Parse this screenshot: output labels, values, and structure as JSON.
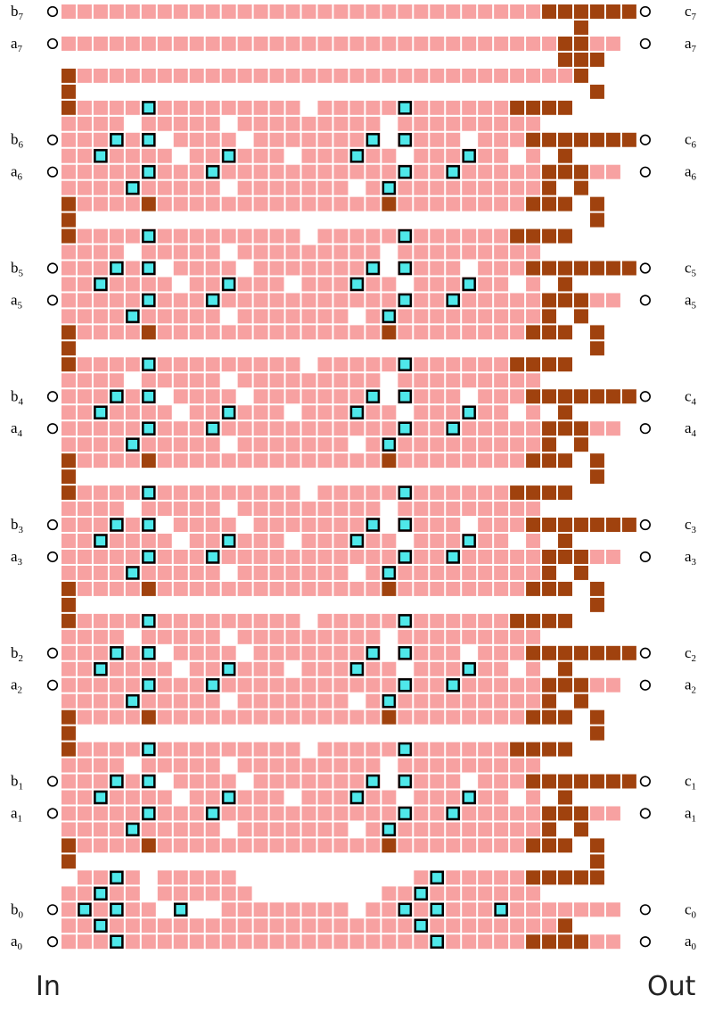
{
  "colors": {
    "cell": "#f7a1a1",
    "wire": "#a0420e",
    "gate": "#4fe8ea",
    "gate_border": "#000000",
    "port": "#ffffff",
    "port_border": "#000000",
    "background": "#ffffff"
  },
  "inputs": [
    {
      "letter": "b",
      "index": "7"
    },
    {
      "letter": "a",
      "index": "7"
    },
    {
      "letter": "b",
      "index": "6"
    },
    {
      "letter": "a",
      "index": "6"
    },
    {
      "letter": "b",
      "index": "5"
    },
    {
      "letter": "a",
      "index": "5"
    },
    {
      "letter": "b",
      "index": "4"
    },
    {
      "letter": "a",
      "index": "4"
    },
    {
      "letter": "b",
      "index": "3"
    },
    {
      "letter": "a",
      "index": "3"
    },
    {
      "letter": "b",
      "index": "2"
    },
    {
      "letter": "a",
      "index": "2"
    },
    {
      "letter": "b",
      "index": "1"
    },
    {
      "letter": "a",
      "index": "1"
    },
    {
      "letter": "b",
      "index": "0"
    },
    {
      "letter": "a",
      "index": "0"
    }
  ],
  "outputs": [
    {
      "letter": "c",
      "index": "7"
    },
    {
      "letter": "a",
      "index": "7"
    },
    {
      "letter": "c",
      "index": "6"
    },
    {
      "letter": "a",
      "index": "6"
    },
    {
      "letter": "c",
      "index": "5"
    },
    {
      "letter": "a",
      "index": "5"
    },
    {
      "letter": "c",
      "index": "4"
    },
    {
      "letter": "a",
      "index": "4"
    },
    {
      "letter": "c",
      "index": "3"
    },
    {
      "letter": "a",
      "index": "3"
    },
    {
      "letter": "c",
      "index": "2"
    },
    {
      "letter": "a",
      "index": "2"
    },
    {
      "letter": "c",
      "index": "1"
    },
    {
      "letter": "a",
      "index": "1"
    },
    {
      "letter": "c",
      "index": "0"
    },
    {
      "letter": "a",
      "index": "0"
    }
  ],
  "footer": {
    "in_label": "In",
    "out_label": "Out"
  }
}
